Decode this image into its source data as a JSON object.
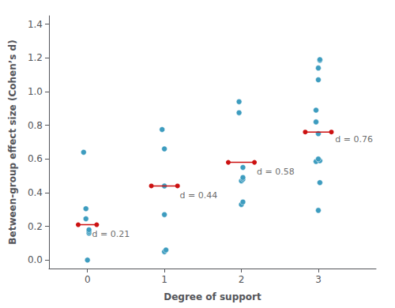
{
  "chart_data": {
    "type": "scatter",
    "xlabel": "Degree of support",
    "ylabel": "Between-group effect size (Cohen’s d)",
    "xlim": [
      -0.5,
      3.75
    ],
    "ylim": [
      -0.05,
      1.45
    ],
    "xticks": [
      0,
      1,
      2,
      3
    ],
    "yticks": [
      {
        "value": 0.0,
        "label": "0.0"
      },
      0.2,
      0.4,
      0.6,
      0.8,
      {
        "value": 1.0,
        "label": "1.0"
      },
      1.2,
      1.4
    ],
    "grid": false,
    "color": "#3d9cbf",
    "mean_color": "#cc1111",
    "groups": [
      {
        "points": [
          [
            0.0,
            0.0
          ],
          [
            0.02,
            0.16
          ],
          [
            0.02,
            0.17
          ],
          [
            0.02,
            0.18
          ],
          [
            -0.02,
            0.245
          ],
          [
            -0.02,
            0.305
          ],
          [
            -0.05,
            0.64
          ]
        ],
        "mean": 0.21,
        "mean_x": [
          -0.12,
          0.12
        ],
        "label": "d = 0.21",
        "label_xy": [
          0.06,
          0.155
        ]
      },
      {
        "points": [
          [
            1.0,
            0.05
          ],
          [
            1.02,
            0.06
          ],
          [
            1.0,
            0.27
          ],
          [
            1.0,
            0.44
          ],
          [
            1.0,
            0.66
          ],
          [
            0.97,
            0.775
          ]
        ],
        "mean": 0.44,
        "mean_x": [
          0.83,
          1.17
        ],
        "label": "d = 0.44",
        "label_xy": [
          1.2,
          0.385
        ]
      },
      {
        "points": [
          [
            2.0,
            0.33
          ],
          [
            2.02,
            0.345
          ],
          [
            2.0,
            0.47
          ],
          [
            2.02,
            0.48
          ],
          [
            2.02,
            0.49
          ],
          [
            2.02,
            0.55
          ],
          [
            1.97,
            0.875
          ],
          [
            1.97,
            0.94
          ]
        ],
        "mean": 0.58,
        "mean_x": [
          1.83,
          2.17
        ],
        "label": "d = 0.58",
        "label_xy": [
          2.2,
          0.525
        ]
      },
      {
        "points": [
          [
            3.0,
            0.295
          ],
          [
            3.02,
            0.46
          ],
          [
            2.97,
            0.585
          ],
          [
            3.02,
            0.59
          ],
          [
            3.0,
            0.6
          ],
          [
            3.0,
            0.75
          ],
          [
            2.97,
            0.82
          ],
          [
            2.97,
            0.89
          ],
          [
            3.0,
            1.07
          ],
          [
            3.0,
            1.14
          ],
          [
            3.02,
            1.185
          ],
          [
            3.02,
            1.19
          ]
        ],
        "mean": 0.76,
        "mean_x": [
          2.83,
          3.17
        ],
        "label": "d = 0.76",
        "label_xy": [
          3.22,
          0.715
        ]
      }
    ]
  }
}
